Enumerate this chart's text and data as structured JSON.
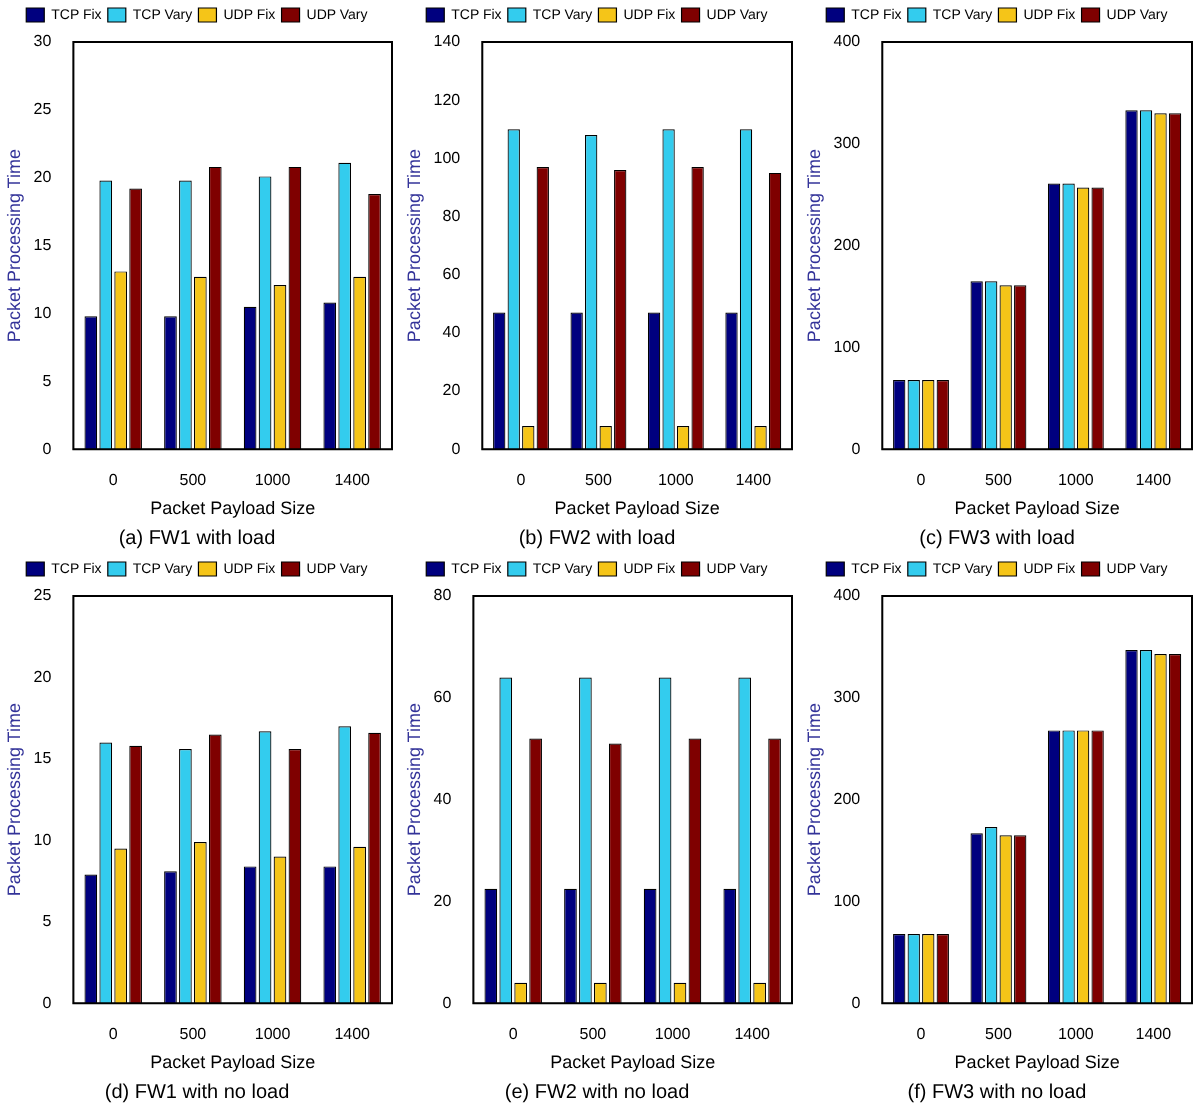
{
  "chart_data": [
    {
      "type": "bar",
      "title": "(a) FW1 with load",
      "xlabel": "Packet Payload Size",
      "ylabel": "Packet Processing Time",
      "categories": [
        "0",
        "500",
        "1000",
        "1400"
      ],
      "ylim": [
        0,
        30
      ],
      "yticks": [
        0,
        5,
        10,
        15,
        20,
        25,
        30
      ],
      "legend": "top",
      "grid": false,
      "series": [
        {
          "name": "TCP Fix",
          "color": "#00007f",
          "values": [
            9.8,
            9.8,
            10.5,
            10.8
          ]
        },
        {
          "name": "TCP Vary",
          "color": "#33ccee",
          "values": [
            19.8,
            19.8,
            20.1,
            21.1
          ]
        },
        {
          "name": "UDP Fix",
          "color": "#f5c518",
          "values": [
            13.1,
            12.7,
            12.1,
            12.7
          ]
        },
        {
          "name": "UDP Vary",
          "color": "#7f0000",
          "values": [
            19.2,
            20.8,
            20.8,
            18.8
          ]
        }
      ]
    },
    {
      "type": "bar",
      "title": "(b) FW2 with load",
      "xlabel": "Packet Payload Size",
      "ylabel": "Packet Processing Time",
      "categories": [
        "0",
        "500",
        "1000",
        "1400"
      ],
      "ylim": [
        0,
        140
      ],
      "yticks": [
        0,
        20,
        40,
        60,
        80,
        100,
        120,
        140
      ],
      "legend": "top",
      "grid": false,
      "series": [
        {
          "name": "TCP Fix",
          "color": "#00007f",
          "values": [
            47,
            47,
            47,
            47
          ]
        },
        {
          "name": "TCP Vary",
          "color": "#33ccee",
          "values": [
            110,
            108,
            110,
            110
          ]
        },
        {
          "name": "UDP Fix",
          "color": "#f5c518",
          "values": [
            8,
            8,
            8,
            8
          ]
        },
        {
          "name": "UDP Vary",
          "color": "#7f0000",
          "values": [
            97,
            96,
            97,
            95
          ]
        }
      ]
    },
    {
      "type": "bar",
      "title": "(c) FW3 with load",
      "xlabel": "Packet Payload Size",
      "ylabel": "Packet Processing Time",
      "categories": [
        "0",
        "500",
        "1000",
        "1400"
      ],
      "ylim": [
        0,
        400
      ],
      "yticks": [
        0,
        100,
        200,
        300,
        400
      ],
      "legend": "top",
      "grid": false,
      "series": [
        {
          "name": "TCP Fix",
          "color": "#00007f",
          "values": [
            68,
            165,
            261,
            333
          ]
        },
        {
          "name": "TCP Vary",
          "color": "#33ccee",
          "values": [
            68,
            165,
            261,
            333
          ]
        },
        {
          "name": "UDP Fix",
          "color": "#f5c518",
          "values": [
            68,
            161,
            257,
            330
          ]
        },
        {
          "name": "UDP Vary",
          "color": "#7f0000",
          "values": [
            68,
            161,
            257,
            330
          ]
        }
      ]
    },
    {
      "type": "bar",
      "title": "(d) FW1 with no load",
      "xlabel": "Packet Payload Size",
      "ylabel": "Packet Processing Time",
      "categories": [
        "0",
        "500",
        "1000",
        "1400"
      ],
      "ylim": [
        0,
        25
      ],
      "yticks": [
        0,
        5,
        10,
        15,
        20,
        25
      ],
      "legend": "top",
      "grid": false,
      "series": [
        {
          "name": "TCP Fix",
          "color": "#00007f",
          "values": [
            7.9,
            8.1,
            8.4,
            8.4
          ]
        },
        {
          "name": "TCP Vary",
          "color": "#33ccee",
          "values": [
            16,
            15.6,
            16.7,
            17
          ]
        },
        {
          "name": "UDP Fix",
          "color": "#f5c518",
          "values": [
            9.5,
            9.9,
            9,
            9.6
          ]
        },
        {
          "name": "UDP Vary",
          "color": "#7f0000",
          "values": [
            15.8,
            16.5,
            15.6,
            16.6
          ]
        }
      ]
    },
    {
      "type": "bar",
      "title": "(e) FW2 with no load",
      "xlabel": "Packet Payload Size",
      "ylabel": "Packet Processing Time",
      "categories": [
        "0",
        "500",
        "1000",
        "1400"
      ],
      "ylim": [
        0,
        80
      ],
      "yticks": [
        0,
        20,
        40,
        60,
        80
      ],
      "legend": "top",
      "grid": false,
      "series": [
        {
          "name": "TCP Fix",
          "color": "#00007f",
          "values": [
            22.5,
            22.5,
            22.5,
            22.5
          ]
        },
        {
          "name": "TCP Vary",
          "color": "#33ccee",
          "values": [
            64,
            64,
            64,
            64
          ]
        },
        {
          "name": "UDP Fix",
          "color": "#f5c518",
          "values": [
            4,
            4,
            4,
            4
          ]
        },
        {
          "name": "UDP Vary",
          "color": "#7f0000",
          "values": [
            52,
            51,
            52,
            52
          ]
        }
      ]
    },
    {
      "type": "bar",
      "title": "(f) FW3 with no load",
      "xlabel": "Packet Payload Size",
      "ylabel": "Packet Processing Time",
      "categories": [
        "0",
        "500",
        "1000",
        "1400"
      ],
      "ylim": [
        0,
        400
      ],
      "yticks": [
        0,
        100,
        200,
        300,
        400
      ],
      "legend": "top",
      "grid": false,
      "series": [
        {
          "name": "TCP Fix",
          "color": "#00007f",
          "values": [
            68,
            167,
            268,
            347
          ]
        },
        {
          "name": "TCP Vary",
          "color": "#33ccee",
          "values": [
            68,
            173,
            268,
            347
          ]
        },
        {
          "name": "UDP Fix",
          "color": "#f5c518",
          "values": [
            68,
            165,
            268,
            343
          ]
        },
        {
          "name": "UDP Vary",
          "color": "#7f0000",
          "values": [
            68,
            165,
            268,
            343
          ]
        }
      ]
    }
  ]
}
